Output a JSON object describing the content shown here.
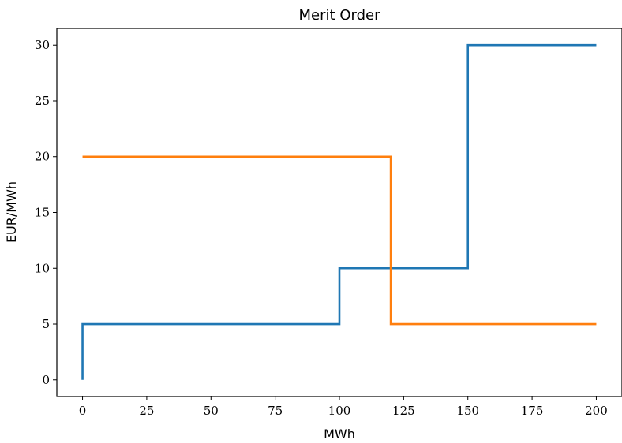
{
  "chart_data": {
    "type": "line",
    "step": "post",
    "title": "Merit Order",
    "xlabel": "MWh",
    "ylabel": "EUR/MWh",
    "xlim": [
      -10,
      210
    ],
    "ylim": [
      -1.5,
      31.5
    ],
    "xticks": [
      0,
      25,
      50,
      75,
      100,
      125,
      150,
      175,
      200
    ],
    "yticks": [
      0,
      5,
      10,
      15,
      20,
      25,
      30
    ],
    "grid": false,
    "series": [
      {
        "color": "#1f77b4",
        "x": [
          0,
          0,
          100,
          150,
          200
        ],
        "y": [
          0,
          5,
          10,
          30,
          30
        ]
      },
      {
        "color": "#ff7f0e",
        "x": [
          0,
          120,
          200
        ],
        "y": [
          20,
          5,
          5
        ]
      }
    ]
  }
}
